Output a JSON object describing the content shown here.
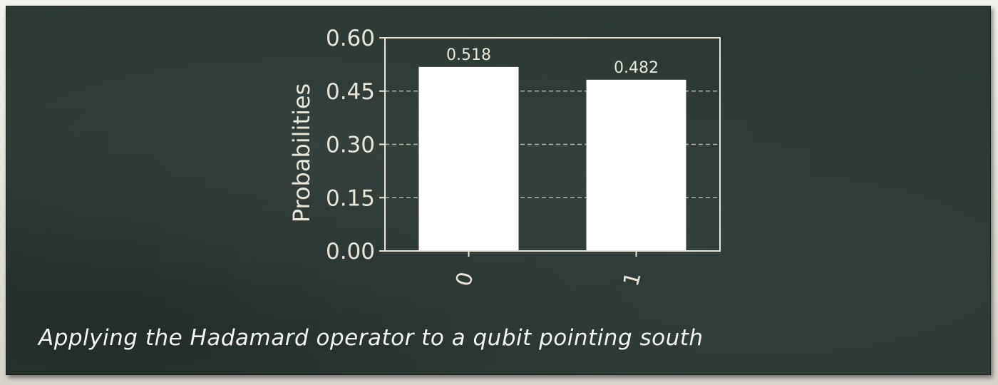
{
  "colors": {
    "board": "#2a3733",
    "chalk": "#e9e6d9",
    "bar": "#ffffff",
    "grid": "#c9c6b8"
  },
  "caption": "Applying the Hadamard operator to a qubit pointing south",
  "chart_data": {
    "type": "bar",
    "title": "",
    "xlabel": "",
    "ylabel": "Probabilities",
    "categories": [
      "0",
      "1"
    ],
    "values": [
      0.518,
      0.482
    ],
    "value_labels": [
      "0.518",
      "0.482"
    ],
    "ylim": [
      0,
      0.6
    ],
    "yticks": [
      0.0,
      0.15,
      0.3,
      0.45,
      0.6
    ],
    "ytick_labels": [
      "0.00",
      "0.15",
      "0.30",
      "0.45",
      "0.60"
    ],
    "grid": "horizontal-dashed",
    "xtick_rotation": "rotated"
  }
}
